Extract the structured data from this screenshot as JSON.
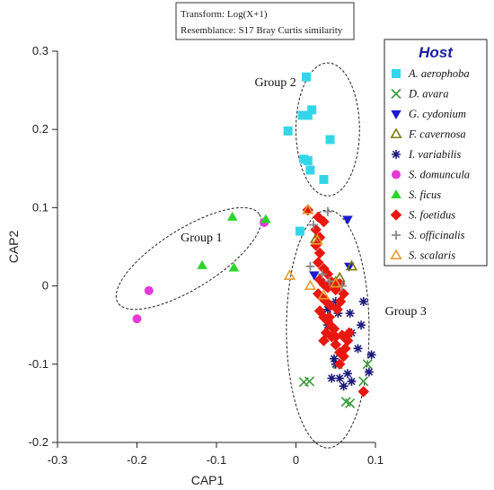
{
  "chart_data": {
    "type": "scatter",
    "title_lines": [
      "Transform: Log(X+1)",
      "Resemblance: S17 Bray Curtis similarity"
    ],
    "xlabel": "CAP1",
    "ylabel": "CAP2",
    "xlim": [
      -0.3,
      0.1
    ],
    "ylim": [
      -0.2,
      0.3
    ],
    "xticks": [
      "-0.3",
      "-0.2",
      "-0.1",
      "0",
      "0.1"
    ],
    "yticks": [
      "0.3",
      "0.2",
      "0.1",
      "0",
      "-0.1",
      "-0.2"
    ],
    "legend_title": "Host",
    "legend_title_color": "#1a1aa6",
    "legend_position": "top-right",
    "groups": [
      {
        "name": "Group 1",
        "cx": -0.135,
        "cy": 0.035,
        "rx": 0.105,
        "ry": 0.038,
        "angle_deg": 32,
        "label_x": -0.145,
        "label_y": 0.057
      },
      {
        "name": "Group 2",
        "cx": 0.04,
        "cy": 0.2,
        "rx": 0.04,
        "ry": 0.085,
        "angle_deg": 0,
        "label_x": -0.052,
        "label_y": 0.255
      },
      {
        "name": "Group 3",
        "cx": 0.04,
        "cy": -0.055,
        "rx": 0.052,
        "ry": 0.152,
        "angle_deg": 0,
        "label_x": 0.112,
        "label_y": -0.037
      }
    ],
    "series": [
      {
        "name": "A. aerophoba",
        "marker": "square",
        "color": "#33d6e8",
        "points": [
          [
            0.013,
            0.267
          ],
          [
            0.008,
            0.218
          ],
          [
            0.02,
            0.225
          ],
          [
            0.015,
            0.218
          ],
          [
            -0.01,
            0.198
          ],
          [
            0.01,
            0.162
          ],
          [
            0.015,
            0.16
          ],
          [
            0.018,
            0.148
          ],
          [
            0.043,
            0.187
          ],
          [
            0.035,
            0.136
          ],
          [
            0.005,
            0.07
          ]
        ]
      },
      {
        "name": "D. avara",
        "marker": "x",
        "color": "#3a9a3a",
        "points": [
          [
            0.01,
            -0.123
          ],
          [
            0.017,
            -0.122
          ],
          [
            0.053,
            -0.1
          ],
          [
            0.085,
            -0.122
          ],
          [
            0.063,
            -0.148
          ],
          [
            0.068,
            -0.15
          ],
          [
            0.09,
            -0.1
          ]
        ]
      },
      {
        "name": "G. cydonium",
        "marker": "tri-down",
        "color": "#1a1ad0",
        "points": [
          [
            0.065,
            0.085
          ],
          [
            0.023,
            0.014
          ],
          [
            0.067,
            0.025
          ]
        ]
      },
      {
        "name": "F. cavernosa",
        "marker": "tri-up-open",
        "color": "#7a7a10",
        "points": [
          [
            0.025,
            0.06
          ],
          [
            0.05,
            0.005
          ],
          [
            0.07,
            0.025
          ],
          [
            0.055,
            0.01
          ]
        ]
      },
      {
        "name": "I. variabilis",
        "marker": "asterisk",
        "color": "#1a1a7a",
        "points": [
          [
            0.04,
            -0.03
          ],
          [
            0.05,
            -0.02
          ],
          [
            0.053,
            -0.035
          ],
          [
            0.04,
            -0.05
          ],
          [
            0.068,
            -0.035
          ],
          [
            0.085,
            -0.02
          ],
          [
            0.082,
            -0.05
          ],
          [
            0.07,
            -0.06
          ],
          [
            0.048,
            -0.093
          ],
          [
            0.05,
            -0.1
          ],
          [
            0.078,
            -0.08
          ],
          [
            0.095,
            -0.088
          ],
          [
            0.092,
            -0.11
          ],
          [
            0.065,
            -0.112
          ],
          [
            0.055,
            -0.118
          ],
          [
            0.045,
            -0.118
          ],
          [
            0.07,
            -0.122
          ],
          [
            0.06,
            -0.128
          ]
        ]
      },
      {
        "name": "S. domuncula",
        "marker": "circle",
        "color": "#e63ad6",
        "points": [
          [
            -0.04,
            0.081
          ],
          [
            -0.185,
            -0.006
          ],
          [
            -0.2,
            -0.042
          ]
        ]
      },
      {
        "name": "S. ficus",
        "marker": "tri-up",
        "color": "#2ad62a",
        "points": [
          [
            -0.08,
            0.088
          ],
          [
            -0.118,
            0.026
          ],
          [
            -0.078,
            0.023
          ],
          [
            -0.038,
            0.085
          ]
        ]
      },
      {
        "name": "S. foetidus",
        "marker": "diamond",
        "color": "#e8170f",
        "points": [
          [
            0.015,
            0.097
          ],
          [
            0.028,
            0.088
          ],
          [
            0.035,
            0.082
          ],
          [
            0.025,
            0.072
          ],
          [
            0.03,
            0.062
          ],
          [
            0.025,
            0.052
          ],
          [
            0.03,
            0.042
          ],
          [
            0.028,
            0.03
          ],
          [
            0.035,
            0.022
          ],
          [
            0.04,
            0.015
          ],
          [
            0.03,
            0.008
          ],
          [
            0.035,
            0.002
          ],
          [
            0.04,
            -0.002
          ],
          [
            0.028,
            -0.01
          ],
          [
            0.033,
            -0.015
          ],
          [
            0.038,
            -0.02
          ],
          [
            0.043,
            -0.025
          ],
          [
            0.03,
            -0.032
          ],
          [
            0.035,
            -0.04
          ],
          [
            0.04,
            -0.045
          ],
          [
            0.045,
            -0.052
          ],
          [
            0.038,
            -0.06
          ],
          [
            0.035,
            -0.07
          ],
          [
            0.045,
            -0.065
          ],
          [
            0.05,
            -0.075
          ],
          [
            0.055,
            -0.085
          ],
          [
            0.06,
            -0.09
          ],
          [
            0.055,
            -0.1
          ],
          [
            0.065,
            -0.07
          ],
          [
            0.062,
            -0.08
          ],
          [
            0.058,
            -0.063
          ],
          [
            0.067,
            -0.06
          ],
          [
            0.05,
            -0.065
          ],
          [
            0.048,
            -0.055
          ],
          [
            0.042,
            -0.04
          ],
          [
            0.052,
            -0.03
          ],
          [
            0.056,
            -0.02
          ],
          [
            0.06,
            -0.01
          ],
          [
            0.045,
            0.005
          ],
          [
            0.05,
            -0.005
          ],
          [
            0.055,
            0.003
          ],
          [
            0.085,
            -0.135
          ]
        ]
      },
      {
        "name": "S. officinalis",
        "marker": "plus",
        "color": "#8a8a8a",
        "points": [
          [
            0.04,
            0.095
          ],
          [
            0.022,
            0.078
          ],
          [
            0.018,
            0.025
          ],
          [
            0.033,
            0.015
          ],
          [
            0.042,
            0.006
          ],
          [
            0.058,
            0.0
          ]
        ]
      },
      {
        "name": "S. scalaris",
        "marker": "tri-up-open",
        "color": "#e89a2a",
        "points": [
          [
            0.015,
            0.097
          ],
          [
            0.027,
            0.058
          ],
          [
            -0.008,
            0.013
          ],
          [
            0.018,
            0.0
          ],
          [
            0.035,
            -0.012
          ],
          [
            0.05,
            0.003
          ]
        ]
      }
    ]
  }
}
